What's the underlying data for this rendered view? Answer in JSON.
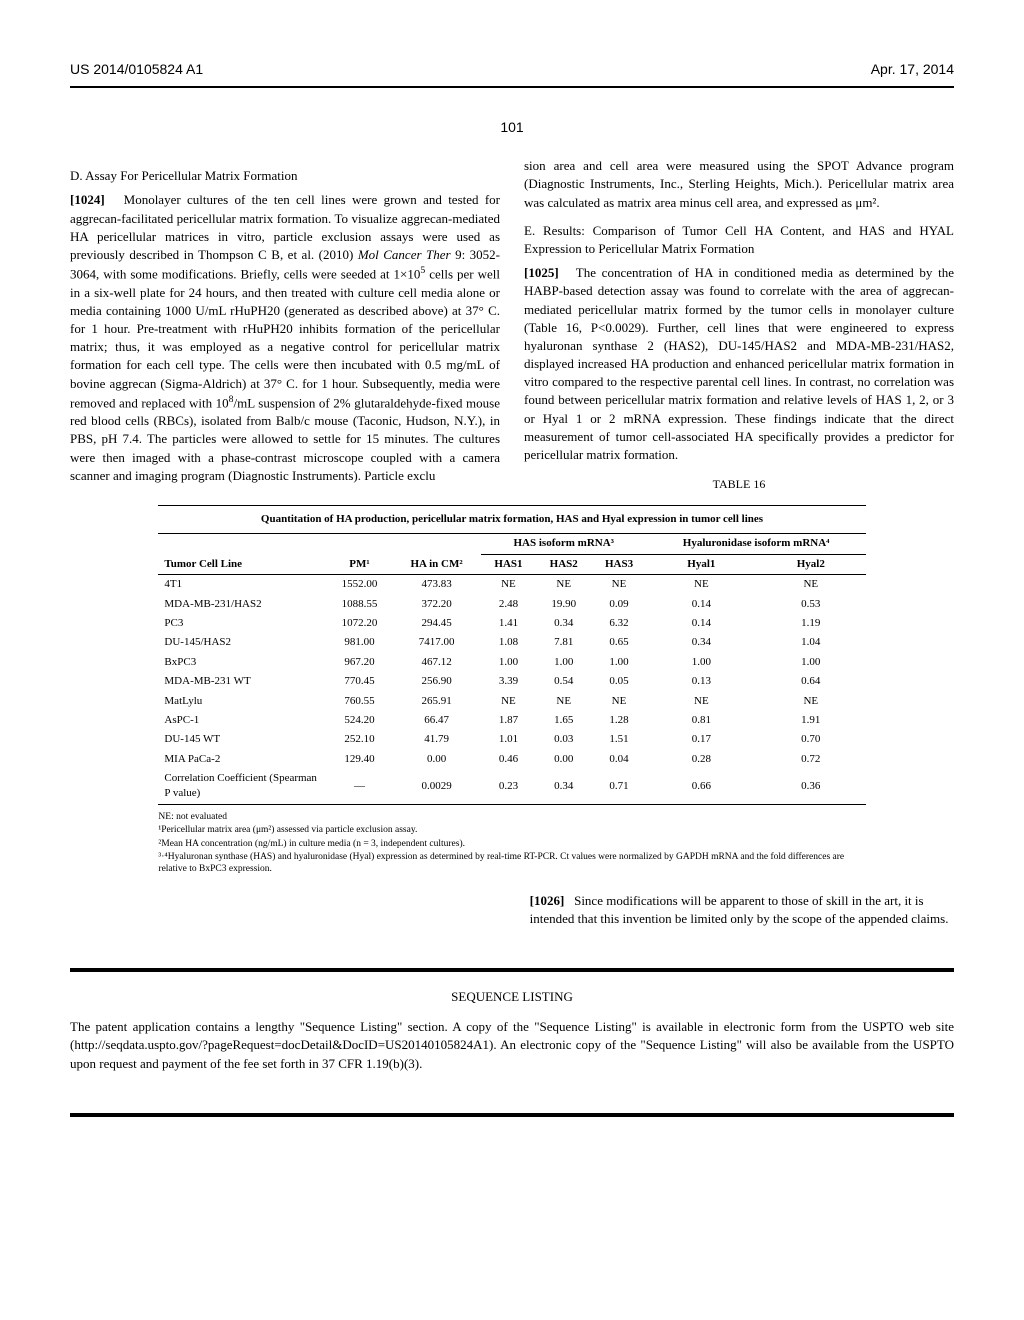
{
  "header": {
    "left": "US 2014/0105824 A1",
    "right": "Apr. 17, 2014"
  },
  "pageNumber": "101",
  "leftCol": {
    "sectionD": "D. Assay For Pericellular Matrix Formation",
    "p1024_num": "[1024]",
    "p1024": "Monolayer cultures of the ten cell lines were grown and tested for aggrecan-facilitated pericellular matrix formation. To visualize aggrecan-mediated HA pericellular matrices in vitro, particle exclusion assays were used as previously described in Thompson C B, et al. (2010) ",
    "p1024_ital": "Mol Cancer Ther",
    "p1024_b": " 9: 3052-3064, with some modifications. Briefly, cells were seeded at 1×10",
    "p1024_b2": " cells per well in a six-well plate for 24 hours, and then treated with culture cell media alone or media containing 1000 U/mL rHuPH20 (generated as described above) at 37° C. for 1 hour. Pre-treatment with rHuPH20 inhibits formation of the pericellular matrix; thus, it was employed as a negative control for pericellular matrix formation for each cell type. The cells were then incubated with 0.5 mg/mL of bovine aggrecan (Sigma-Aldrich) at 37° C. for 1 hour. Subsequently, media were removed and replaced with 10",
    "p1024_b3": "/mL suspension of 2% glutaraldehyde-fixed mouse red blood cells (RBCs), isolated from Balb/c mouse (Taconic, Hudson, N.Y.), in PBS, pH 7.4. The particles were allowed to settle for 15 minutes. The cultures were then imaged with a phase-contrast microscope coupled with a camera scanner and imaging program (Diagnostic Instruments). Particle exclu"
  },
  "rightCol": {
    "cont": "sion area and cell area were measured using the SPOT Advance program (Diagnostic Instruments, Inc., Sterling Heights, Mich.). Pericellular matrix area was calculated as matrix area minus cell area, and expressed as μm².",
    "sectionE": "E. Results: Comparison of Tumor Cell HA Content, and HAS and HYAL Expression to Pericellular Matrix Formation",
    "p1025_num": "[1025]",
    "p1025": "The concentration of HA in conditioned media as determined by the HABP-based detection assay was found to correlate with the area of aggrecan-mediated pericellular matrix formed by the tumor cells in monolayer culture (Table 16, P<0.0029). Further, cell lines that were engineered to express hyaluronan synthase 2 (HAS2), DU-145/HAS2 and MDA-MB-231/HAS2, displayed increased HA production and enhanced pericellular matrix formation in vitro compared to the respective parental cell lines. In contrast, no correlation was found between pericellular matrix formation and relative levels of HAS 1, 2, or 3 or Hyal 1 or 2 mRNA expression. These findings indicate that the direct measurement of tumor cell-associated HA specifically provides a predictor for pericellular matrix formation."
  },
  "table": {
    "label": "TABLE 16",
    "title": "Quantitation of HA production, pericellular matrix formation, HAS and Hyal expression in tumor cell lines",
    "groupHeaders": {
      "g1": "HAS isoform mRNA³",
      "g2": "Hyaluronidase isoform mRNA⁴"
    },
    "cols": [
      "Tumor Cell Line",
      "PM¹",
      "HA in CM²",
      "HAS1",
      "HAS2",
      "HAS3",
      "Hyal1",
      "Hyal2"
    ],
    "rows": [
      [
        "4T1",
        "1552.00",
        "473.83",
        "NE",
        "NE",
        "NE",
        "NE",
        "NE"
      ],
      [
        "MDA-MB-231/HAS2",
        "1088.55",
        "372.20",
        "2.48",
        "19.90",
        "0.09",
        "0.14",
        "0.53"
      ],
      [
        "PC3",
        "1072.20",
        "294.45",
        "1.41",
        "0.34",
        "6.32",
        "0.14",
        "1.19"
      ],
      [
        "DU-145/HAS2",
        "981.00",
        "7417.00",
        "1.08",
        "7.81",
        "0.65",
        "0.34",
        "1.04"
      ],
      [
        "BxPC3",
        "967.20",
        "467.12",
        "1.00",
        "1.00",
        "1.00",
        "1.00",
        "1.00"
      ],
      [
        "MDA-MB-231 WT",
        "770.45",
        "256.90",
        "3.39",
        "0.54",
        "0.05",
        "0.13",
        "0.64"
      ],
      [
        "MatLylu",
        "760.55",
        "265.91",
        "NE",
        "NE",
        "NE",
        "NE",
        "NE"
      ],
      [
        "AsPC-1",
        "524.20",
        "66.47",
        "1.87",
        "1.65",
        "1.28",
        "0.81",
        "1.91"
      ],
      [
        "DU-145 WT",
        "252.10",
        "41.79",
        "1.01",
        "0.03",
        "1.51",
        "0.17",
        "0.70"
      ],
      [
        "MIA PaCa-2",
        "129.40",
        "0.00",
        "0.46",
        "0.00",
        "0.04",
        "0.28",
        "0.72"
      ],
      [
        "Correlation Coefficient (Spearman P value)",
        "—",
        "0.0029",
        "0.23",
        "0.34",
        "0.71",
        "0.66",
        "0.36"
      ]
    ],
    "footnotes": {
      "ne": "NE: not evaluated",
      "f1": "¹Pericellular matrix area (μm²) assessed via particle exclusion assay.",
      "f2": "²Mean HA concentration (ng/mL) in culture media (n = 3, independent cultures).",
      "f3": "³·⁴Hyaluronan synthase (HAS) and hyaluronidase (Hyal) expression as determined by real-time RT-PCR. Ct values were normalized by GAPDH mRNA and the fold differences are relative to BxPC3 expression."
    }
  },
  "p1026_num": "[1026]",
  "p1026": "Since modifications will be apparent to those of skill in the art, it is intended that this invention be limited only by the scope of the appended claims.",
  "seq": {
    "title": "SEQUENCE LISTING",
    "para": "The patent application contains a lengthy \"Sequence Listing\" section. A copy of the \"Sequence Listing\" is available in electronic form from the USPTO web site (http://seqdata.uspto.gov/?pageRequest=docDetail&DocID=US20140105824A1). An electronic copy of the \"Sequence Listing\" will also be available from the USPTO upon request and payment of the fee set forth in 37 CFR 1.19(b)(3)."
  }
}
